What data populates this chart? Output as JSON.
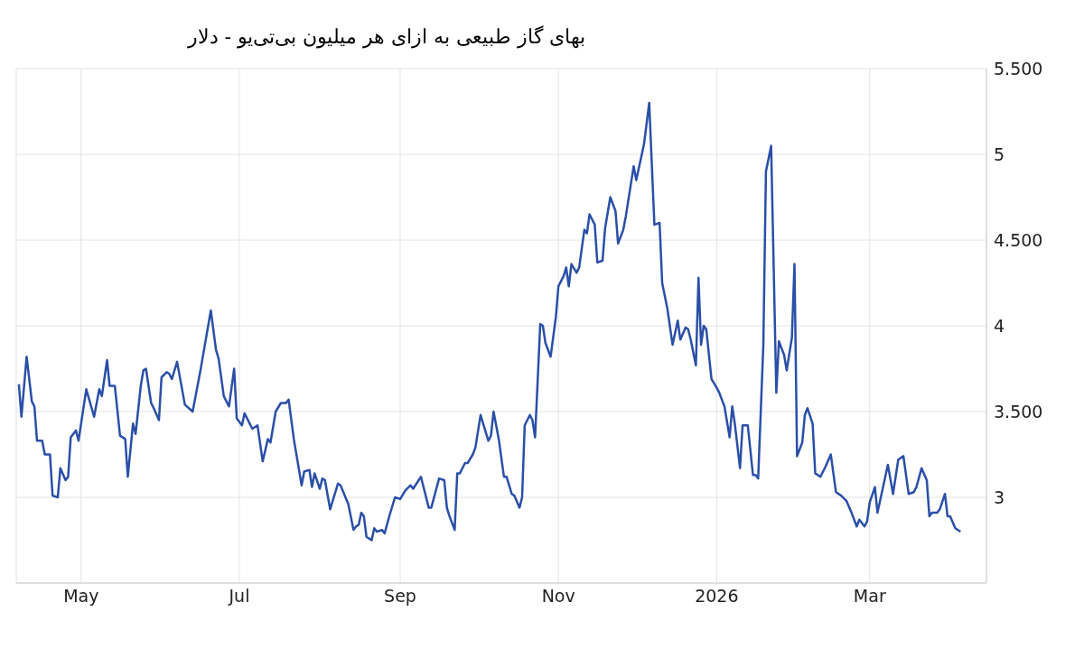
{
  "chart_data": {
    "type": "line",
    "title": "بهای گاز طبیعی به ازای هر میلیون بی‌تی‌یو - دلار",
    "xlim": [
      "2025-04-06",
      "2026-04-15"
    ],
    "xticks": [
      {
        "value": "2025-05-01",
        "label": "May"
      },
      {
        "value": "2025-07-01",
        "label": "Jul"
      },
      {
        "value": "2025-09-01",
        "label": "Sep"
      },
      {
        "value": "2025-11-01",
        "label": "Nov"
      },
      {
        "value": "2026-01-01",
        "label": "2026"
      },
      {
        "value": "2026-03-01",
        "label": "Mar"
      }
    ],
    "ylim": [
      2.5,
      5.5
    ],
    "yticks": [
      3,
      {
        "value": 3.5,
        "label": "3.500"
      },
      4,
      {
        "value": 4.5,
        "label": "4.500"
      },
      5,
      {
        "value": 5.5,
        "label": "5.500"
      }
    ],
    "grid": true,
    "x": [
      "2025-04-07",
      "2025-04-08",
      "2025-04-10",
      "2025-04-12",
      "2025-04-13",
      "2025-04-14",
      "2025-04-16",
      "2025-04-17",
      "2025-04-19",
      "2025-04-20",
      "2025-04-22",
      "2025-04-23",
      "2025-04-25",
      "2025-04-26",
      "2025-04-27",
      "2025-04-29",
      "2025-04-30",
      "2025-05-03",
      "2025-05-06",
      "2025-05-08",
      "2025-05-09",
      "2025-05-11",
      "2025-05-12",
      "2025-05-14",
      "2025-05-16",
      "2025-05-18",
      "2025-05-19",
      "2025-05-21",
      "2025-05-22",
      "2025-05-24",
      "2025-05-25",
      "2025-05-26",
      "2025-05-28",
      "2025-05-29",
      "2025-05-31",
      "2025-06-01",
      "2025-06-03",
      "2025-06-04",
      "2025-06-05",
      "2025-06-07",
      "2025-06-10",
      "2025-06-13",
      "2025-06-16",
      "2025-06-20",
      "2025-06-22",
      "2025-06-23",
      "2025-06-25",
      "2025-06-27",
      "2025-06-29",
      "2025-06-30",
      "2025-07-02",
      "2025-07-03",
      "2025-07-06",
      "2025-07-08",
      "2025-07-10",
      "2025-07-12",
      "2025-07-13",
      "2025-07-15",
      "2025-07-17",
      "2025-07-19",
      "2025-07-20",
      "2025-07-22",
      "2025-07-23",
      "2025-07-25",
      "2025-07-26",
      "2025-07-28",
      "2025-07-29",
      "2025-07-30",
      "2025-08-01",
      "2025-08-02",
      "2025-08-03",
      "2025-08-05",
      "2025-08-08",
      "2025-08-09",
      "2025-08-12",
      "2025-08-14",
      "2025-08-15",
      "2025-08-16",
      "2025-08-17",
      "2025-08-18",
      "2025-08-19",
      "2025-08-21",
      "2025-08-22",
      "2025-08-23",
      "2025-08-25",
      "2025-08-26",
      "2025-08-28",
      "2025-08-30",
      "2025-09-01",
      "2025-09-03",
      "2025-09-05",
      "2025-09-06",
      "2025-09-09",
      "2025-09-12",
      "2025-09-13",
      "2025-09-16",
      "2025-09-18",
      "2025-09-19",
      "2025-09-20",
      "2025-09-22",
      "2025-09-23",
      "2025-09-24",
      "2025-09-26",
      "2025-09-27",
      "2025-09-29",
      "2025-09-30",
      "2025-10-02",
      "2025-10-03",
      "2025-10-05",
      "2025-10-06",
      "2025-10-07",
      "2025-10-09",
      "2025-10-11",
      "2025-10-12",
      "2025-10-14",
      "2025-10-15",
      "2025-10-17",
      "2025-10-18",
      "2025-10-19",
      "2025-10-21",
      "2025-10-22",
      "2025-10-23",
      "2025-10-25",
      "2025-10-26",
      "2025-10-27",
      "2025-10-29",
      "2025-10-31",
      "2025-11-01",
      "2025-11-03",
      "2025-11-04",
      "2025-11-05",
      "2025-11-06",
      "2025-11-08",
      "2025-11-09",
      "2025-11-11",
      "2025-11-12",
      "2025-11-13",
      "2025-11-15",
      "2025-11-16",
      "2025-11-18",
      "2025-11-19",
      "2025-11-21",
      "2025-11-23",
      "2025-11-24",
      "2025-11-26",
      "2025-11-27",
      "2025-11-30",
      "2025-12-01",
      "2025-12-03",
      "2025-12-04",
      "2025-12-06",
      "2025-12-08",
      "2025-12-10",
      "2025-12-11",
      "2025-12-13",
      "2025-12-15",
      "2025-12-17",
      "2025-12-18",
      "2025-12-20",
      "2025-12-21",
      "2025-12-22",
      "2025-12-24",
      "2025-12-25",
      "2025-12-26",
      "2025-12-27",
      "2025-12-28",
      "2025-12-30",
      "2026-01-01",
      "2026-01-02",
      "2026-01-04",
      "2026-01-06",
      "2026-01-07",
      "2026-01-08",
      "2026-01-10",
      "2026-01-11",
      "2026-01-13",
      "2026-01-15",
      "2026-01-16",
      "2026-01-17",
      "2026-01-19",
      "2026-01-20",
      "2026-01-22",
      "2026-01-24",
      "2026-01-25",
      "2026-01-27",
      "2026-01-28",
      "2026-01-30",
      "2026-01-31",
      "2026-02-01",
      "2026-02-03",
      "2026-02-04",
      "2026-02-05",
      "2026-02-07",
      "2026-02-08",
      "2026-02-10",
      "2026-02-12",
      "2026-02-14",
      "2026-02-16",
      "2026-02-18",
      "2026-02-20",
      "2026-02-22",
      "2026-02-24",
      "2026-02-25",
      "2026-02-27",
      "2026-02-28",
      "2026-03-01",
      "2026-03-03",
      "2026-03-04",
      "2026-03-08",
      "2026-03-10",
      "2026-03-12",
      "2026-03-14",
      "2026-03-16",
      "2026-03-18",
      "2026-03-19",
      "2026-03-21",
      "2026-03-23",
      "2026-03-24",
      "2026-03-25",
      "2026-03-27",
      "2026-03-28",
      "2026-03-30",
      "2026-03-31",
      "2026-04-01",
      "2026-04-03",
      "2026-04-05"
    ],
    "series": [
      {
        "color": "#2a4fa8",
        "values": [
          3.66,
          3.47,
          3.82,
          3.56,
          3.53,
          3.33,
          3.33,
          3.25,
          3.25,
          3.01,
          3.0,
          3.17,
          3.1,
          3.12,
          3.35,
          3.39,
          3.33,
          3.63,
          3.47,
          3.63,
          3.59,
          3.8,
          3.65,
          3.65,
          3.36,
          3.34,
          3.12,
          3.43,
          3.37,
          3.65,
          3.74,
          3.75,
          3.55,
          3.52,
          3.45,
          3.7,
          3.73,
          3.72,
          3.69,
          3.79,
          3.54,
          3.5,
          3.74,
          4.09,
          3.86,
          3.81,
          3.59,
          3.53,
          3.75,
          3.46,
          3.42,
          3.49,
          3.4,
          3.42,
          3.21,
          3.34,
          3.32,
          3.5,
          3.55,
          3.55,
          3.57,
          3.34,
          3.25,
          3.07,
          3.15,
          3.16,
          3.06,
          3.14,
          3.05,
          3.11,
          3.1,
          2.93,
          3.08,
          3.07,
          2.96,
          2.81,
          2.83,
          2.84,
          2.91,
          2.89,
          2.77,
          2.75,
          2.82,
          2.8,
          2.81,
          2.79,
          2.9,
          3.0,
          2.99,
          3.04,
          3.07,
          3.05,
          3.12,
          2.94,
          2.94,
          3.11,
          3.1,
          2.94,
          2.89,
          2.81,
          3.14,
          3.14,
          3.2,
          3.2,
          3.25,
          3.29,
          3.48,
          3.43,
          3.33,
          3.36,
          3.5,
          3.34,
          3.12,
          3.12,
          3.02,
          3.01,
          2.94,
          3.0,
          3.42,
          3.48,
          3.45,
          3.35,
          4.01,
          4.0,
          3.9,
          3.82,
          4.05,
          4.23,
          4.29,
          4.34,
          4.23,
          4.36,
          4.31,
          4.34,
          4.56,
          4.54,
          4.65,
          4.59,
          4.37,
          4.38,
          4.57,
          4.75,
          4.67,
          4.48,
          4.56,
          4.64,
          4.93,
          4.85,
          4.99,
          5.06,
          5.3,
          4.59,
          4.6,
          4.25,
          4.1,
          3.89,
          4.03,
          3.92,
          3.99,
          3.98,
          3.92,
          3.77,
          4.28,
          3.89,
          4.0,
          3.98,
          3.69,
          3.64,
          3.61,
          3.53,
          3.35,
          3.53,
          3.43,
          3.17,
          3.42,
          3.42,
          3.13,
          3.13,
          3.11,
          3.89,
          4.9,
          5.05,
          3.61,
          3.91,
          3.83,
          3.74,
          3.93,
          4.36,
          3.24,
          3.32,
          3.48,
          3.52,
          3.43,
          3.14,
          3.12,
          3.18,
          3.25,
          3.03,
          3.01,
          2.98,
          2.91,
          2.83,
          2.87,
          2.83,
          2.86,
          2.97,
          3.06,
          2.91,
          3.19,
          3.02,
          3.22,
          3.24,
          3.02,
          3.03,
          3.06,
          3.17,
          3.1,
          2.89,
          2.91,
          2.91,
          2.93,
          3.02,
          2.89,
          2.89,
          2.82,
          2.8
        ]
      }
    ]
  }
}
